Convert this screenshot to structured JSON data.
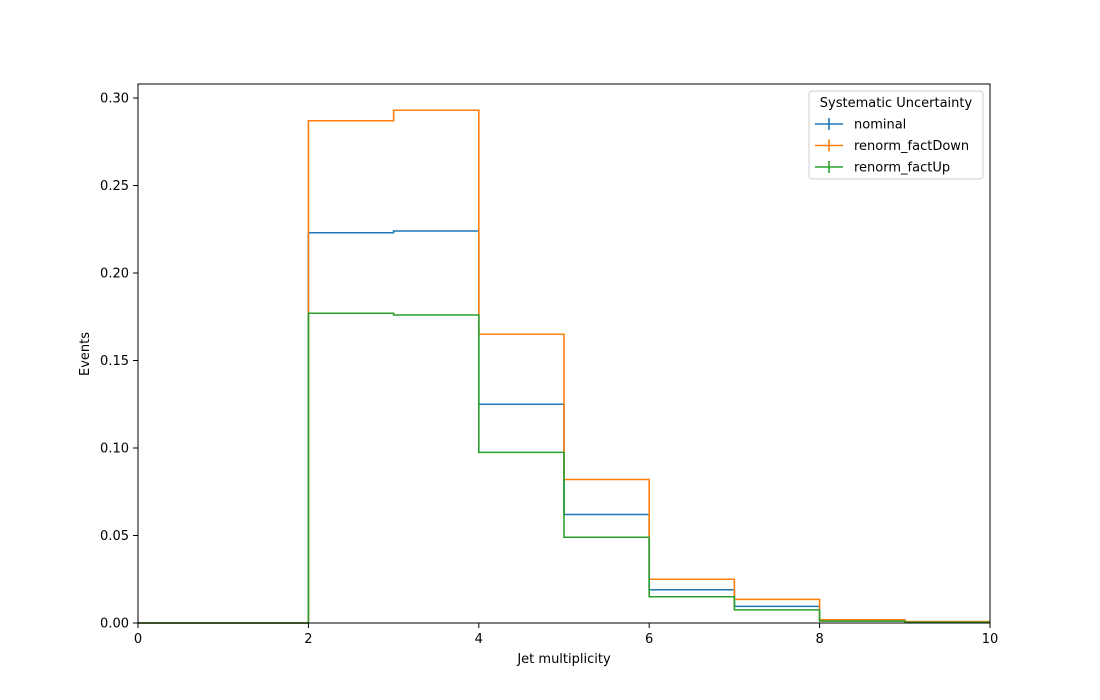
{
  "chart_data": {
    "type": "line",
    "drawstyle": "step-histogram",
    "bin_edges": [
      0,
      1,
      2,
      3,
      4,
      5,
      6,
      7,
      8,
      9,
      10
    ],
    "xlabel": "Jet multiplicity",
    "ylabel": "Events",
    "xlim": [
      0,
      10
    ],
    "ylim": [
      0,
      0.308
    ],
    "xticks": [
      0,
      2,
      4,
      6,
      8,
      10
    ],
    "yticks": [
      0.0,
      0.05,
      0.1,
      0.15,
      0.2,
      0.25,
      0.3
    ],
    "ytick_labels": [
      "0.00",
      "0.05",
      "0.10",
      "0.15",
      "0.20",
      "0.25",
      "0.30"
    ],
    "xtick_labels": [
      "0",
      "2",
      "4",
      "6",
      "8",
      "10"
    ],
    "grid": false,
    "legend": {
      "title": "Systematic Uncertainty",
      "placement": "top-right"
    },
    "series": [
      {
        "name": "nominal",
        "color": "#1f77b4",
        "values": [
          0,
          0,
          0.223,
          0.224,
          0.125,
          0.062,
          0.019,
          0.0095,
          0.0015,
          0.0006
        ]
      },
      {
        "name": "renorm_factDown",
        "color": "#ff7f0e",
        "values": [
          0,
          0,
          0.287,
          0.293,
          0.165,
          0.082,
          0.025,
          0.0135,
          0.0018,
          0.0008
        ]
      },
      {
        "name": "renorm_factUp",
        "color": "#2ca02c",
        "values": [
          0,
          0,
          0.177,
          0.176,
          0.0975,
          0.049,
          0.015,
          0.0075,
          0.0011,
          0.0004
        ]
      }
    ]
  }
}
